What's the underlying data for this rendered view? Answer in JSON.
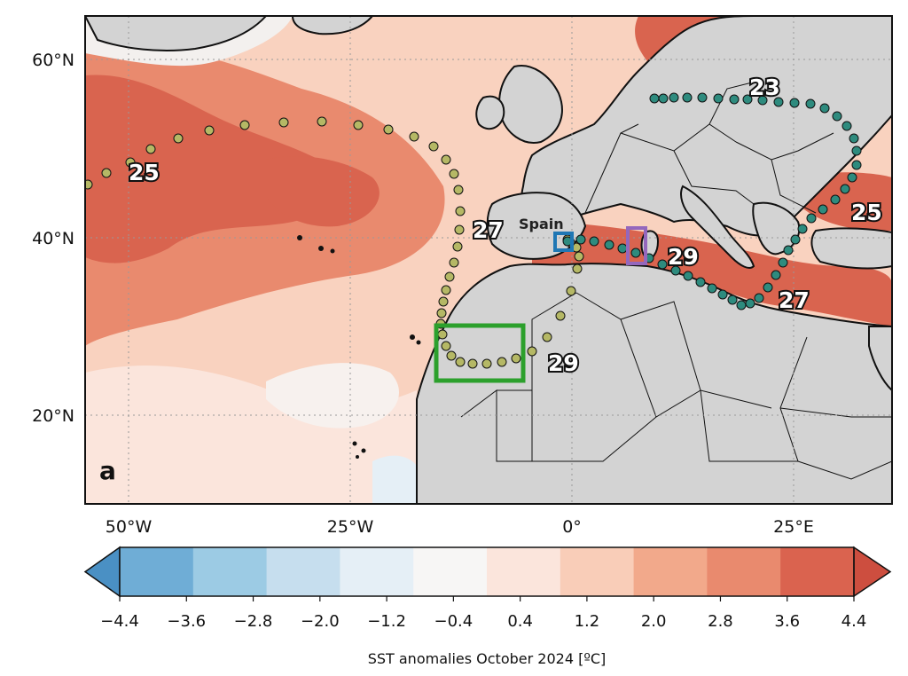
{
  "panel_label": "a",
  "map": {
    "lat_ticks": [
      "60°N",
      "40°N",
      "20°N"
    ],
    "lon_ticks": [
      "50°W",
      "25°W",
      "0°",
      "25°E"
    ],
    "country_label": "Spain",
    "sst_labels": [
      "25",
      "27",
      "29",
      "23",
      "25",
      "29",
      "27"
    ],
    "boxes": [
      {
        "name": "green-box",
        "color": "#2ca02c"
      },
      {
        "name": "blue-box",
        "color": "#1f77b4"
      },
      {
        "name": "purple-box",
        "color": "#9467bd"
      }
    ],
    "tracks": {
      "atlantic_color": "#b5b865",
      "mediterranean_color": "#2e8b7e"
    }
  },
  "colorbar": {
    "title": "SST anomalies October 2024 [ºC]",
    "tick_labels": [
      "−4.4",
      "−3.6",
      "−2.8",
      "−2.0",
      "−1.2",
      "−0.4",
      "0.4",
      "1.2",
      "2.0",
      "2.8",
      "3.6",
      "4.4"
    ],
    "colors": [
      "#4a90c4",
      "#6fadd6",
      "#9ccbe4",
      "#c6deee",
      "#e5eff6",
      "#f7f6f5",
      "#fbe5dc",
      "#f9cdb8",
      "#f2a98b",
      "#e98a6e",
      "#da634f",
      "#cd4e3f"
    ]
  }
}
